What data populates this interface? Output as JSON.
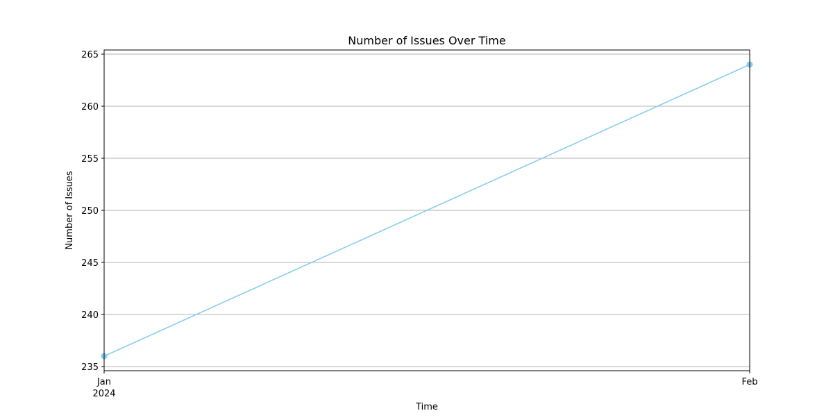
{
  "chart_data": {
    "type": "line",
    "title": "Number of Issues Over Time",
    "xlabel": "Time",
    "ylabel": "Number of Issues",
    "x": [
      "2024-01",
      "2024-02"
    ],
    "x_tick_labels": [
      {
        "month": "Jan",
        "year": "2024"
      },
      {
        "month": "Feb",
        "year": ""
      }
    ],
    "series": [
      {
        "values": [
          236,
          264
        ],
        "color": "#87CEEB",
        "marker": "circle"
      }
    ],
    "yticks": [
      235,
      240,
      245,
      250,
      255,
      260,
      265
    ],
    "ylim": [
      234.6,
      265.4
    ],
    "grid": "horizontal"
  }
}
